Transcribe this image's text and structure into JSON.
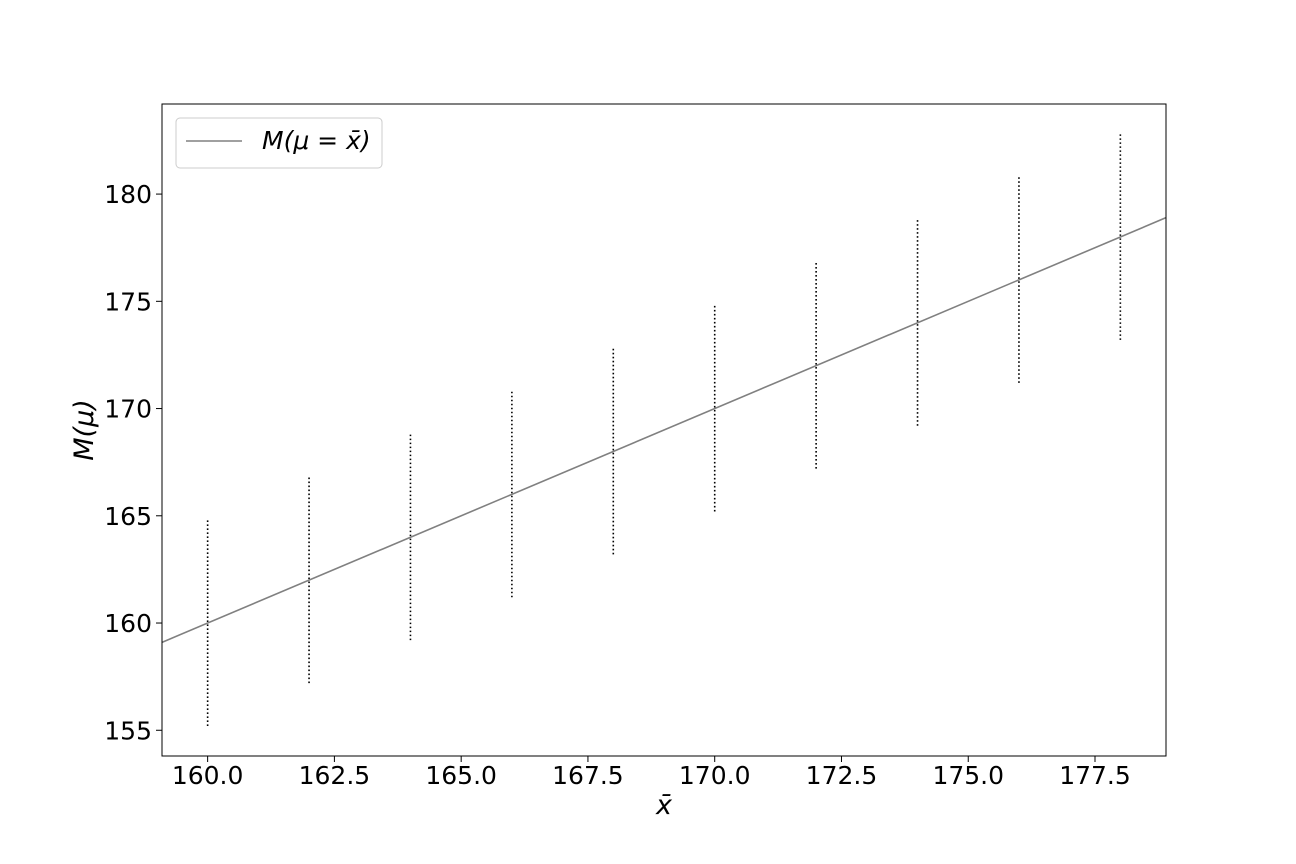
{
  "chart_data": {
    "type": "line",
    "title": "",
    "xlabel": "x̄",
    "ylabel": "M(μ)",
    "xlim": [
      159.1,
      178.9
    ],
    "ylim": [
      153.8,
      184.2
    ],
    "xticks": [
      160.0,
      162.5,
      165.0,
      167.5,
      170.0,
      172.5,
      175.0,
      177.5
    ],
    "xtick_labels": [
      "160.0",
      "162.5",
      "165.0",
      "167.5",
      "170.0",
      "172.5",
      "175.0",
      "177.5"
    ],
    "yticks": [
      155,
      160,
      165,
      170,
      175,
      180
    ],
    "ytick_labels": [
      "155",
      "160",
      "165",
      "170",
      "175",
      "180"
    ],
    "grid": false,
    "legend": {
      "position": "top-left",
      "entries": [
        "M(μ = x̄)"
      ]
    },
    "series": [
      {
        "name": "M(μ = x̄)",
        "kind": "line",
        "color": "#808080",
        "x": [
          159.1,
          178.9
        ],
        "y": [
          159.1,
          178.9
        ]
      },
      {
        "kind": "interval",
        "style": "dotted",
        "color": "#000000",
        "x": [
          160,
          162,
          164,
          166,
          168,
          170,
          172,
          174,
          176,
          178
        ],
        "low": [
          155.2,
          157.2,
          159.2,
          161.2,
          163.2,
          165.2,
          167.2,
          169.2,
          171.2,
          173.2
        ],
        "high": [
          164.8,
          166.8,
          168.8,
          170.8,
          172.8,
          174.8,
          176.8,
          178.8,
          180.8,
          182.8
        ]
      }
    ]
  }
}
